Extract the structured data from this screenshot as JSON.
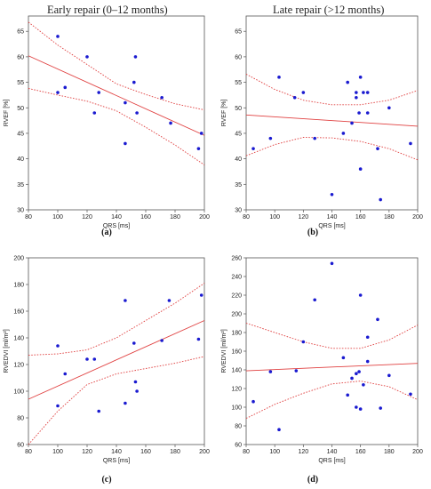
{
  "column_titles": [
    "Early repair (0–12 months)",
    "Late repair (>12 months)"
  ],
  "colors": {
    "point": "#1a1ad0",
    "fit": "#e04040",
    "frame": "#555555"
  },
  "chart_data": [
    {
      "type": "scatter",
      "caption": "(a)",
      "xlabel": "QRS [ms]",
      "ylabel": "RVEF [%]",
      "xlim": [
        80,
        200
      ],
      "ylim": [
        30,
        68
      ],
      "xticks": [
        80,
        100,
        120,
        140,
        160,
        180,
        200
      ],
      "yticks": [
        30,
        35,
        40,
        45,
        50,
        55,
        60,
        65
      ],
      "points": [
        [
          100,
          64
        ],
        [
          100,
          53
        ],
        [
          105,
          54
        ],
        [
          120,
          60
        ],
        [
          125,
          49
        ],
        [
          128,
          53
        ],
        [
          146,
          51
        ],
        [
          146,
          43
        ],
        [
          152,
          55
        ],
        [
          153,
          60
        ],
        [
          154,
          49
        ],
        [
          171,
          52
        ],
        [
          177,
          47
        ],
        [
          196,
          42
        ],
        [
          198,
          45
        ]
      ],
      "fit": {
        "x": [
          80,
          200
        ],
        "y": [
          60.2,
          44.6
        ]
      },
      "ci_upper": [
        [
          80,
          66.8
        ],
        [
          100,
          62.3
        ],
        [
          120,
          58.5
        ],
        [
          140,
          54.7
        ],
        [
          160,
          52.6
        ],
        [
          180,
          50.8
        ],
        [
          200,
          49.6
        ]
      ],
      "ci_lower": [
        [
          80,
          53.8
        ],
        [
          100,
          52.5
        ],
        [
          120,
          51.3
        ],
        [
          140,
          49.4
        ],
        [
          160,
          46.2
        ],
        [
          180,
          42.7
        ],
        [
          200,
          38.8
        ]
      ]
    },
    {
      "type": "scatter",
      "caption": "(b)",
      "xlabel": "QRS [ms]",
      "ylabel": "RVEF [%]",
      "xlim": [
        80,
        200
      ],
      "ylim": [
        30,
        68
      ],
      "xticks": [
        80,
        100,
        120,
        140,
        160,
        180,
        200
      ],
      "yticks": [
        30,
        35,
        40,
        45,
        50,
        55,
        60,
        65
      ],
      "points": [
        [
          85,
          42
        ],
        [
          97,
          44
        ],
        [
          103,
          56
        ],
        [
          114,
          52
        ],
        [
          120,
          53
        ],
        [
          128,
          44
        ],
        [
          140,
          33
        ],
        [
          148,
          45
        ],
        [
          151,
          55
        ],
        [
          154,
          47
        ],
        [
          157,
          52
        ],
        [
          157,
          53
        ],
        [
          159,
          49
        ],
        [
          160,
          56
        ],
        [
          160,
          38
        ],
        [
          162,
          53
        ],
        [
          165,
          49
        ],
        [
          165,
          53
        ],
        [
          172,
          42
        ],
        [
          174,
          32
        ],
        [
          180,
          50
        ],
        [
          195,
          43
        ]
      ],
      "fit": {
        "x": [
          80,
          200
        ],
        "y": [
          48.6,
          46.4
        ]
      },
      "ci_upper": [
        [
          80,
          56.6
        ],
        [
          100,
          53.6
        ],
        [
          120,
          51.5
        ],
        [
          140,
          50.6
        ],
        [
          160,
          50.6
        ],
        [
          180,
          51.5
        ],
        [
          200,
          53.4
        ]
      ],
      "ci_lower": [
        [
          80,
          40.6
        ],
        [
          100,
          42.8
        ],
        [
          120,
          44.2
        ],
        [
          140,
          44.1
        ],
        [
          160,
          43.4
        ],
        [
          180,
          42.0
        ],
        [
          200,
          39.8
        ]
      ]
    },
    {
      "type": "scatter",
      "caption": "(c)",
      "xlabel": "QRS [ms]",
      "ylabel": "RVEDVI [ml/m²]",
      "xlim": [
        80,
        200
      ],
      "ylim": [
        60,
        200
      ],
      "xticks": [
        80,
        100,
        120,
        140,
        160,
        180,
        200
      ],
      "yticks": [
        60,
        80,
        100,
        120,
        140,
        160,
        180,
        200
      ],
      "points": [
        [
          100,
          134
        ],
        [
          100,
          89
        ],
        [
          105,
          113
        ],
        [
          120,
          124
        ],
        [
          125,
          124
        ],
        [
          128,
          85
        ],
        [
          146,
          168
        ],
        [
          146,
          91
        ],
        [
          152,
          136
        ],
        [
          153,
          107
        ],
        [
          154,
          100
        ],
        [
          171,
          138
        ],
        [
          176,
          168
        ],
        [
          196,
          139
        ],
        [
          198,
          172
        ]
      ],
      "fit": {
        "x": [
          80,
          200
        ],
        "y": [
          94,
          153
        ]
      },
      "ci_upper": [
        [
          80,
          127
        ],
        [
          100,
          128
        ],
        [
          120,
          131
        ],
        [
          140,
          140
        ],
        [
          160,
          153
        ],
        [
          180,
          166
        ],
        [
          200,
          181
        ]
      ],
      "ci_lower": [
        [
          80,
          60
        ],
        [
          100,
          85
        ],
        [
          120,
          105
        ],
        [
          140,
          113
        ],
        [
          160,
          117
        ],
        [
          180,
          121
        ],
        [
          200,
          126
        ]
      ]
    },
    {
      "type": "scatter",
      "caption": "(d)",
      "xlabel": "QRS [ms]",
      "ylabel": "RVEDVI [ml/m²]",
      "xlim": [
        80,
        200
      ],
      "ylim": [
        60,
        260
      ],
      "xticks": [
        80,
        100,
        120,
        140,
        160,
        180,
        200
      ],
      "yticks": [
        60,
        80,
        100,
        120,
        140,
        160,
        180,
        200,
        220,
        240,
        260
      ],
      "points": [
        [
          85,
          106
        ],
        [
          97,
          138
        ],
        [
          103,
          76
        ],
        [
          115,
          139
        ],
        [
          120,
          170
        ],
        [
          128,
          215
        ],
        [
          140,
          254
        ],
        [
          148,
          153
        ],
        [
          151,
          113
        ],
        [
          154,
          131
        ],
        [
          157,
          100
        ],
        [
          157,
          136
        ],
        [
          159,
          138
        ],
        [
          160,
          98
        ],
        [
          160,
          220
        ],
        [
          162,
          124
        ],
        [
          165,
          149
        ],
        [
          165,
          175
        ],
        [
          172,
          194
        ],
        [
          174,
          99
        ],
        [
          180,
          134
        ],
        [
          195,
          114
        ]
      ],
      "fit": {
        "x": [
          80,
          200
        ],
        "y": [
          139,
          147
        ]
      },
      "ci_upper": [
        [
          80,
          190
        ],
        [
          100,
          180
        ],
        [
          120,
          170
        ],
        [
          140,
          163
        ],
        [
          160,
          163
        ],
        [
          180,
          172
        ],
        [
          200,
          188
        ]
      ],
      "ci_lower": [
        [
          80,
          88
        ],
        [
          100,
          103
        ],
        [
          120,
          115
        ],
        [
          140,
          125
        ],
        [
          160,
          128
        ],
        [
          180,
          122
        ],
        [
          200,
          108
        ]
      ]
    }
  ]
}
